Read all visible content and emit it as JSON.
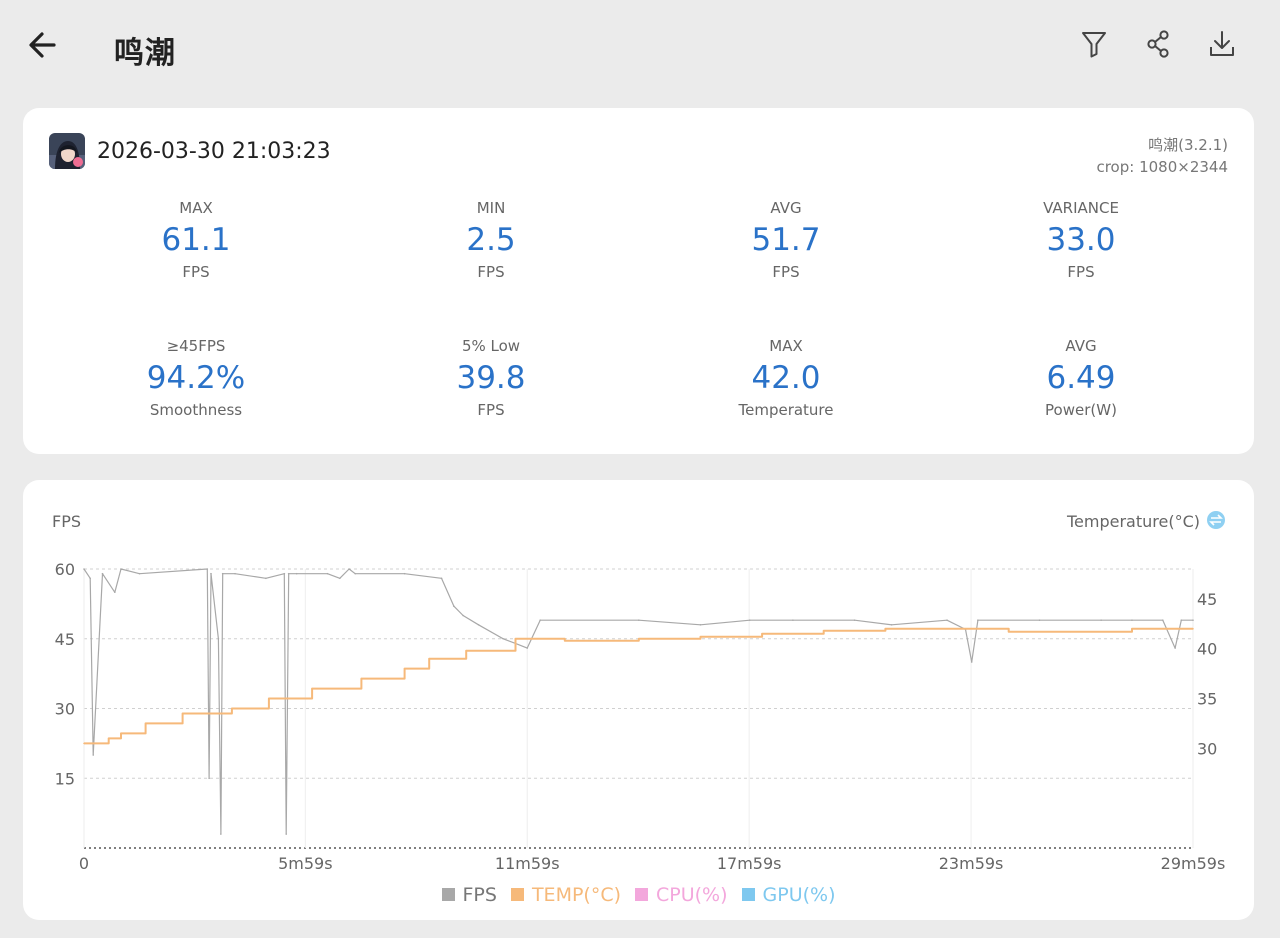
{
  "header": {
    "title": "鸣潮"
  },
  "session": {
    "datetime": "2026-03-30 21:03:23",
    "app_version": "鸣潮(3.2.1)",
    "crop": "crop: 1080×2344"
  },
  "stats": [
    {
      "label": "MAX",
      "value": "61.1",
      "unit": "FPS"
    },
    {
      "label": "MIN",
      "value": "2.5",
      "unit": "FPS"
    },
    {
      "label": "AVG",
      "value": "51.7",
      "unit": "FPS"
    },
    {
      "label": "VARIANCE",
      "value": "33.0",
      "unit": "FPS"
    },
    {
      "label": "≥45FPS",
      "value": "94.2%",
      "unit": "Smoothness"
    },
    {
      "label": "5% Low",
      "value": "39.8",
      "unit": "FPS"
    },
    {
      "label": "MAX",
      "value": "42.0",
      "unit": "Temperature"
    },
    {
      "label": "AVG",
      "value": "6.49",
      "unit": "Power(W)"
    }
  ],
  "colors": {
    "accent": "#2a72c8",
    "fps": "#a8a8a8",
    "temp": "#f6b97a",
    "cpu": "#f3a7dc",
    "gpu": "#7ec8ef",
    "swap_icon": "#8fd0f2"
  },
  "icons": {
    "back": "arrow-left-icon",
    "filter": "filter-icon",
    "share": "share-icon",
    "download": "download-icon",
    "swap": "swap-icon"
  },
  "chart": {
    "left_title": "FPS",
    "right_title": "Temperature(°C)",
    "legend": [
      {
        "label": "FPS",
        "color": "#a8a8a8"
      },
      {
        "label": "TEMP(°C)",
        "color": "#f6b97a"
      },
      {
        "label": "CPU(%)",
        "color": "#f3a7dc"
      },
      {
        "label": "GPU(%)",
        "color": "#7ec8ef"
      }
    ]
  },
  "chart_data": {
    "type": "line",
    "xlabel": "",
    "ylabel": "FPS",
    "y2label": "Temperature(°C)",
    "x_ticks": [
      "0",
      "5m59s",
      "11m59s",
      "17m59s",
      "23m59s",
      "29m59s"
    ],
    "x_tick_seconds": [
      0,
      359,
      719,
      1079,
      1439,
      1799
    ],
    "xlim": [
      0,
      1799
    ],
    "ylim": [
      0,
      60
    ],
    "y_ticks": [
      15,
      30,
      45,
      60
    ],
    "y2_ticks": [
      30,
      35,
      40,
      45
    ],
    "grid": true,
    "legend_position": "bottom-center",
    "series": [
      {
        "name": "FPS",
        "axis": "left",
        "x": [
          0,
          10,
          15,
          30,
          50,
          60,
          90,
          200,
          203,
          206,
          218,
          222,
          225,
          245,
          295,
          325,
          328,
          332,
          345,
          395,
          415,
          430,
          440,
          520,
          580,
          600,
          615,
          640,
          680,
          700,
          719,
          740,
          900,
          1000,
          1080,
          1150,
          1250,
          1310,
          1400,
          1430,
          1440,
          1450,
          1550,
          1650,
          1700,
          1750,
          1770,
          1780,
          1799
        ],
        "y": [
          60,
          58,
          20,
          59,
          55,
          60,
          59,
          60,
          15,
          59,
          45,
          3,
          59,
          59,
          58,
          59,
          3,
          59,
          59,
          59,
          58,
          60,
          59,
          59,
          58,
          52,
          50,
          48,
          45,
          44,
          43,
          49,
          49,
          48,
          49,
          49,
          49,
          48,
          49,
          47,
          40,
          49,
          49,
          49,
          49,
          49,
          43,
          49,
          49
        ]
      },
      {
        "name": "TEMP(°C)",
        "axis": "right",
        "x": [
          0,
          40,
          60,
          100,
          160,
          240,
          300,
          370,
          450,
          520,
          560,
          620,
          700,
          780,
          900,
          1000,
          1100,
          1200,
          1300,
          1400,
          1500,
          1600,
          1700,
          1799
        ],
        "y": [
          30.5,
          31,
          31.5,
          32.5,
          33.5,
          34,
          35,
          36,
          37,
          38,
          39,
          39.8,
          41,
          40.8,
          41,
          41.2,
          41.5,
          41.8,
          42,
          42,
          41.7,
          41.7,
          42,
          42
        ]
      }
    ]
  }
}
